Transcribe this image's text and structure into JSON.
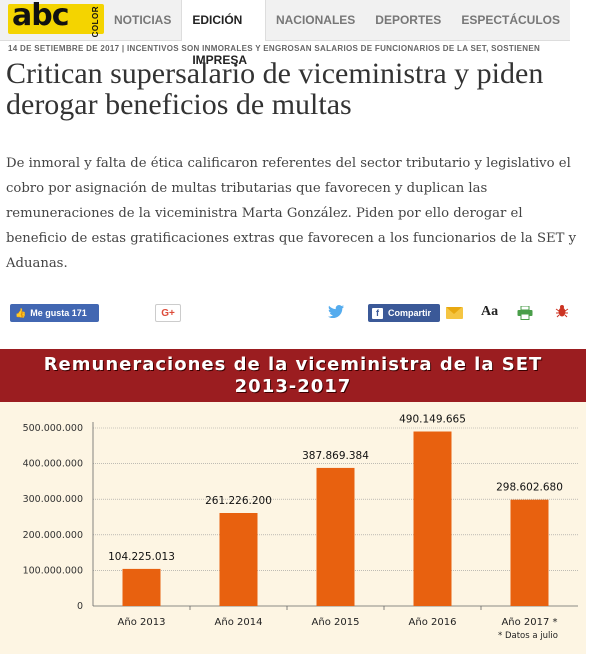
{
  "nav": {
    "logo_text": "abc",
    "logo_sub": "COLOR",
    "tabs": [
      "NOTICIAS",
      "EDICIÓN IMPRESA",
      "NACIONALES",
      "DEPORTES",
      "ESPECTÁCULOS"
    ],
    "active_tab": "EDICIÓN IMPRESA"
  },
  "article": {
    "dateline": "14 DE SETIEMBRE DE 2017 | INCENTIVOS SON INMORALES Y ENGROSAN SALARIOS DE FUNCIONARIOS DE LA SET, SOSTIENEN",
    "headline": "Critican supersalario de viceministra y piden derogar beneficios de multas",
    "lead": "De inmoral y falta de ética calificaron referentes del sector tributario y legislativo el cobro por asignación de multas tributarias que favorecen y duplican las remuneraciones de la viceministra Marta González. Piden por ello derogar el beneficio de estas gratificaciones extras que favorecen a los funcionarios de la SET y Aduanas."
  },
  "share": {
    "like_label": "Me gusta 171",
    "gplus_label": "G+",
    "share_label": "Compartir",
    "font_label": "Aa",
    "icons": [
      "facebook-like-icon",
      "twitter-icon",
      "facebook-icon",
      "mail-icon",
      "printer-icon",
      "bug-icon"
    ],
    "colors": {
      "facebook": "#4267b2",
      "twitter": "#55acee",
      "gplus": "#dd4b39"
    }
  },
  "chart_data": {
    "type": "bar",
    "title": "Remuneraciones de la viceministra de la SET",
    "subtitle": "2013-2017",
    "categories": [
      "Año 2013",
      "Año 2014",
      "Año 2015",
      "Año 2016",
      "Año 2017 *"
    ],
    "values": [
      104225013,
      261226200,
      387869384,
      490149665,
      298602680
    ],
    "value_labels": [
      "104.225.013",
      "261.226.200",
      "387.869.384",
      "490.149.665",
      "298.602.680"
    ],
    "ylim": [
      0,
      500000000
    ],
    "yticks": [
      0,
      100000000,
      200000000,
      300000000,
      400000000,
      500000000
    ],
    "ytick_labels": [
      "0",
      "100.000.000",
      "200.000.000",
      "300.000.000",
      "400.000.000",
      "500.000.000"
    ],
    "footnote": "* Datos a julio",
    "grid": true,
    "colors": {
      "bar": "#e8610f",
      "header": "#9b1d20",
      "background": "#fdf5e3"
    }
  }
}
